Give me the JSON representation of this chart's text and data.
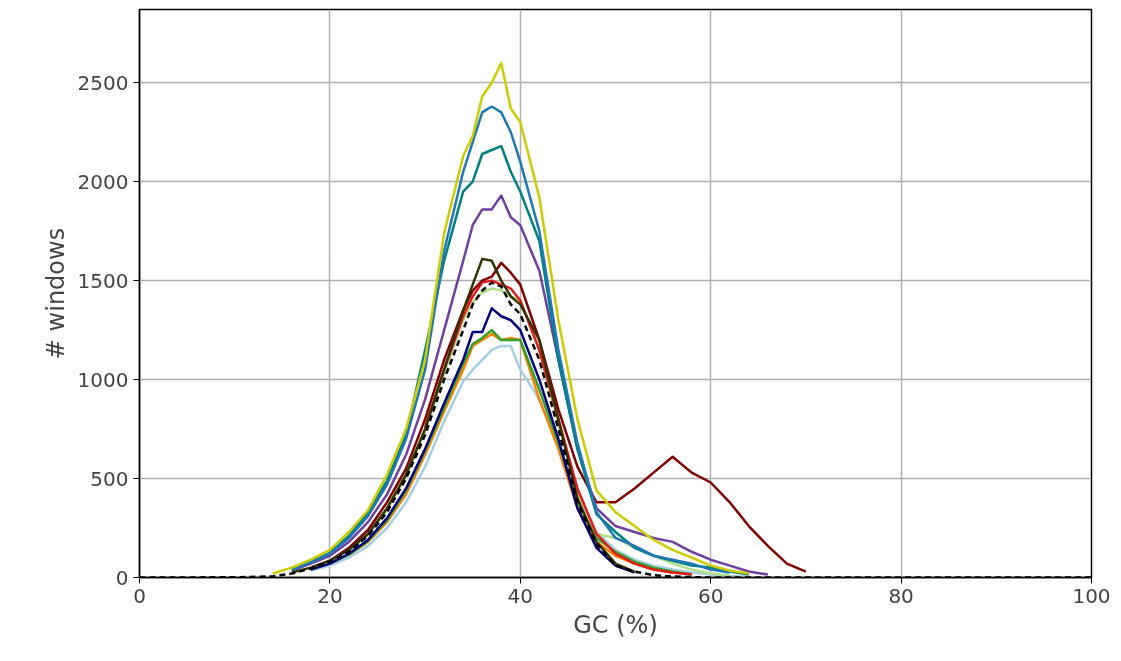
{
  "chart_data": {
    "type": "line",
    "xlabel": "GC (%)",
    "ylabel": "# windows",
    "x": [
      0,
      10,
      14,
      16,
      18,
      20,
      22,
      24,
      26,
      28,
      30,
      32,
      34,
      35,
      36,
      37,
      38,
      39,
      40,
      42,
      44,
      46,
      48,
      50,
      52,
      54,
      56,
      58,
      60,
      62,
      64,
      66,
      68,
      70,
      80,
      100
    ],
    "xlim": [
      0,
      100
    ],
    "xticks": [
      0,
      20,
      40,
      60,
      80,
      100
    ],
    "ylim": [
      0,
      2870
    ],
    "yticks": [
      0,
      500,
      1000,
      1500,
      2000,
      2500
    ],
    "grid": true,
    "marker": "none",
    "series": [
      {
        "color": "#a6cee3",
        "x": [
          18,
          20,
          22,
          24,
          26,
          28,
          30,
          32,
          34,
          35,
          36,
          37,
          38,
          39,
          40,
          42,
          44,
          46,
          48,
          50,
          52,
          54,
          56,
          58,
          60,
          62,
          64
        ],
        "values": [
          35,
          60,
          100,
          160,
          250,
          380,
          560,
          790,
          990,
          1050,
          1100,
          1150,
          1170,
          1170,
          1050,
          900,
          680,
          420,
          230,
          140,
          90,
          60,
          40,
          25,
          15,
          8,
          4
        ]
      },
      {
        "color": "#ff7f00",
        "x": [
          22,
          24,
          26,
          28,
          30,
          32,
          34,
          35,
          36,
          37,
          38,
          39,
          40,
          42,
          44,
          46,
          48,
          50,
          52,
          54,
          56
        ],
        "values": [
          115,
          180,
          280,
          420,
          620,
          840,
          1050,
          1170,
          1200,
          1230,
          1200,
          1210,
          1200,
          900,
          650,
          350,
          180,
          110,
          70,
          40,
          25
        ]
      },
      {
        "color": "#33a02c",
        "x": [
          20,
          22,
          24,
          26,
          28,
          30,
          32,
          34,
          35,
          36,
          37,
          38,
          39,
          40,
          42,
          44,
          46,
          48,
          50,
          52,
          54,
          56,
          58
        ],
        "values": [
          70,
          115,
          185,
          290,
          440,
          640,
          860,
          1080,
          1180,
          1210,
          1250,
          1200,
          1200,
          1200,
          950,
          680,
          380,
          200,
          130,
          80,
          50,
          30,
          15
        ]
      },
      {
        "color": "#b2df8a",
        "x": [
          22,
          24,
          26,
          28,
          30,
          32,
          34,
          35,
          36,
          37,
          38,
          39,
          40,
          42,
          44,
          46,
          48,
          50,
          52,
          54,
          56,
          58,
          60,
          62
        ],
        "values": [
          135,
          215,
          340,
          510,
          740,
          1030,
          1300,
          1390,
          1440,
          1460,
          1450,
          1420,
          1400,
          1150,
          780,
          430,
          220,
          200,
          150,
          110,
          70,
          40,
          20,
          10
        ]
      },
      {
        "color": "#e31a1c",
        "x": [
          30,
          32,
          34,
          35,
          36,
          37,
          38,
          39,
          40,
          42,
          44,
          46,
          48,
          50,
          52,
          54,
          56,
          58
        ],
        "values": [
          760,
          1050,
          1320,
          1420,
          1490,
          1500,
          1480,
          1460,
          1400,
          1150,
          800,
          450,
          220,
          120,
          70,
          40,
          25,
          15
        ]
      },
      {
        "color": "#000080",
        "x": [
          18,
          20,
          22,
          24,
          26,
          28,
          30,
          32,
          34,
          35,
          36,
          37,
          38,
          39,
          40,
          42,
          44,
          46,
          48,
          50,
          52
        ],
        "values": [
          40,
          70,
          120,
          190,
          300,
          450,
          650,
          880,
          1100,
          1240,
          1240,
          1360,
          1320,
          1300,
          1250,
          1000,
          700,
          350,
          150,
          60,
          25
        ]
      },
      {
        "color": "#800000",
        "x": [
          18,
          20,
          22,
          24,
          26,
          28,
          30,
          32,
          34,
          35,
          36,
          37,
          38,
          39,
          40,
          42,
          44,
          46,
          48,
          50,
          52,
          54,
          56,
          58,
          60,
          62,
          64,
          66,
          68,
          70
        ],
        "values": [
          50,
          85,
          150,
          240,
          380,
          550,
          800,
          1100,
          1350,
          1450,
          1500,
          1520,
          1590,
          1540,
          1480,
          1200,
          850,
          560,
          380,
          380,
          450,
          530,
          610,
          530,
          480,
          380,
          260,
          160,
          70,
          30
        ]
      },
      {
        "color": "#7040a0",
        "x": [
          16,
          18,
          20,
          22,
          24,
          26,
          28,
          30,
          32,
          34,
          35,
          36,
          37,
          38,
          39,
          40,
          42,
          44,
          46,
          48,
          50,
          52,
          54,
          56,
          58,
          60,
          62,
          64,
          66
        ],
        "values": [
          35,
          70,
          110,
          180,
          280,
          420,
          620,
          900,
          1250,
          1600,
          1780,
          1860,
          1860,
          1930,
          1820,
          1780,
          1550,
          1100,
          650,
          350,
          260,
          230,
          200,
          180,
          130,
          90,
          60,
          30,
          15
        ]
      },
      {
        "color": "#008080",
        "x": [
          16,
          18,
          20,
          22,
          24,
          26,
          28,
          30,
          32,
          34,
          35,
          36,
          37,
          38,
          39,
          40,
          42,
          44,
          46,
          48,
          50,
          52,
          54,
          56,
          58,
          60,
          62,
          64
        ],
        "values": [
          40,
          80,
          125,
          210,
          330,
          490,
          720,
          1150,
          1600,
          1950,
          2000,
          2140,
          2160,
          2180,
          2050,
          1950,
          1700,
          1100,
          650,
          320,
          230,
          150,
          110,
          85,
          60,
          50,
          30,
          15
        ]
      },
      {
        "color": "#1f78b4",
        "x": [
          16,
          18,
          20,
          22,
          24,
          26,
          28,
          30,
          32,
          34,
          35,
          36,
          37,
          38,
          39,
          40,
          42,
          44,
          46,
          48,
          50,
          52,
          54,
          56,
          58,
          60,
          62
        ],
        "values": [
          40,
          75,
          120,
          200,
          310,
          470,
          700,
          1050,
          1650,
          2050,
          2200,
          2350,
          2380,
          2350,
          2250,
          2100,
          1750,
          1150,
          680,
          330,
          200,
          160,
          110,
          90,
          70,
          40,
          25
        ]
      },
      {
        "color": "#cccc00",
        "x": [
          14,
          16,
          18,
          20,
          22,
          24,
          26,
          28,
          30,
          32,
          34,
          35,
          36,
          37,
          38,
          39,
          40,
          42,
          44,
          46,
          48,
          50,
          52,
          54,
          56,
          58,
          60,
          62,
          64
        ],
        "values": [
          20,
          50,
          90,
          140,
          230,
          340,
          520,
          750,
          1100,
          1740,
          2130,
          2230,
          2430,
          2500,
          2600,
          2370,
          2300,
          1920,
          1300,
          800,
          440,
          330,
          260,
          190,
          140,
          100,
          60,
          35,
          20
        ]
      },
      {
        "color": "#333300",
        "x": [
          16,
          18,
          20,
          22,
          24,
          26,
          28,
          30,
          32,
          34,
          35,
          36,
          37,
          38,
          39,
          40,
          42,
          44,
          46,
          48,
          50,
          52
        ],
        "values": [
          25,
          50,
          85,
          140,
          220,
          350,
          520,
          750,
          1050,
          1350,
          1480,
          1610,
          1600,
          1500,
          1420,
          1380,
          1200,
          800,
          400,
          180,
          70,
          30
        ]
      },
      {
        "color": "#000000",
        "line_style": "dashed",
        "values": [
          0,
          1,
          6,
          20,
          45,
          80,
          130,
          210,
          330,
          500,
          720,
          1000,
          1250,
          1380,
          1450,
          1490,
          1470,
          1380,
          1330,
          1100,
          750,
          380,
          170,
          60,
          30,
          12,
          5,
          2,
          0,
          0,
          0,
          0,
          0,
          0,
          0,
          0
        ]
      }
    ]
  }
}
